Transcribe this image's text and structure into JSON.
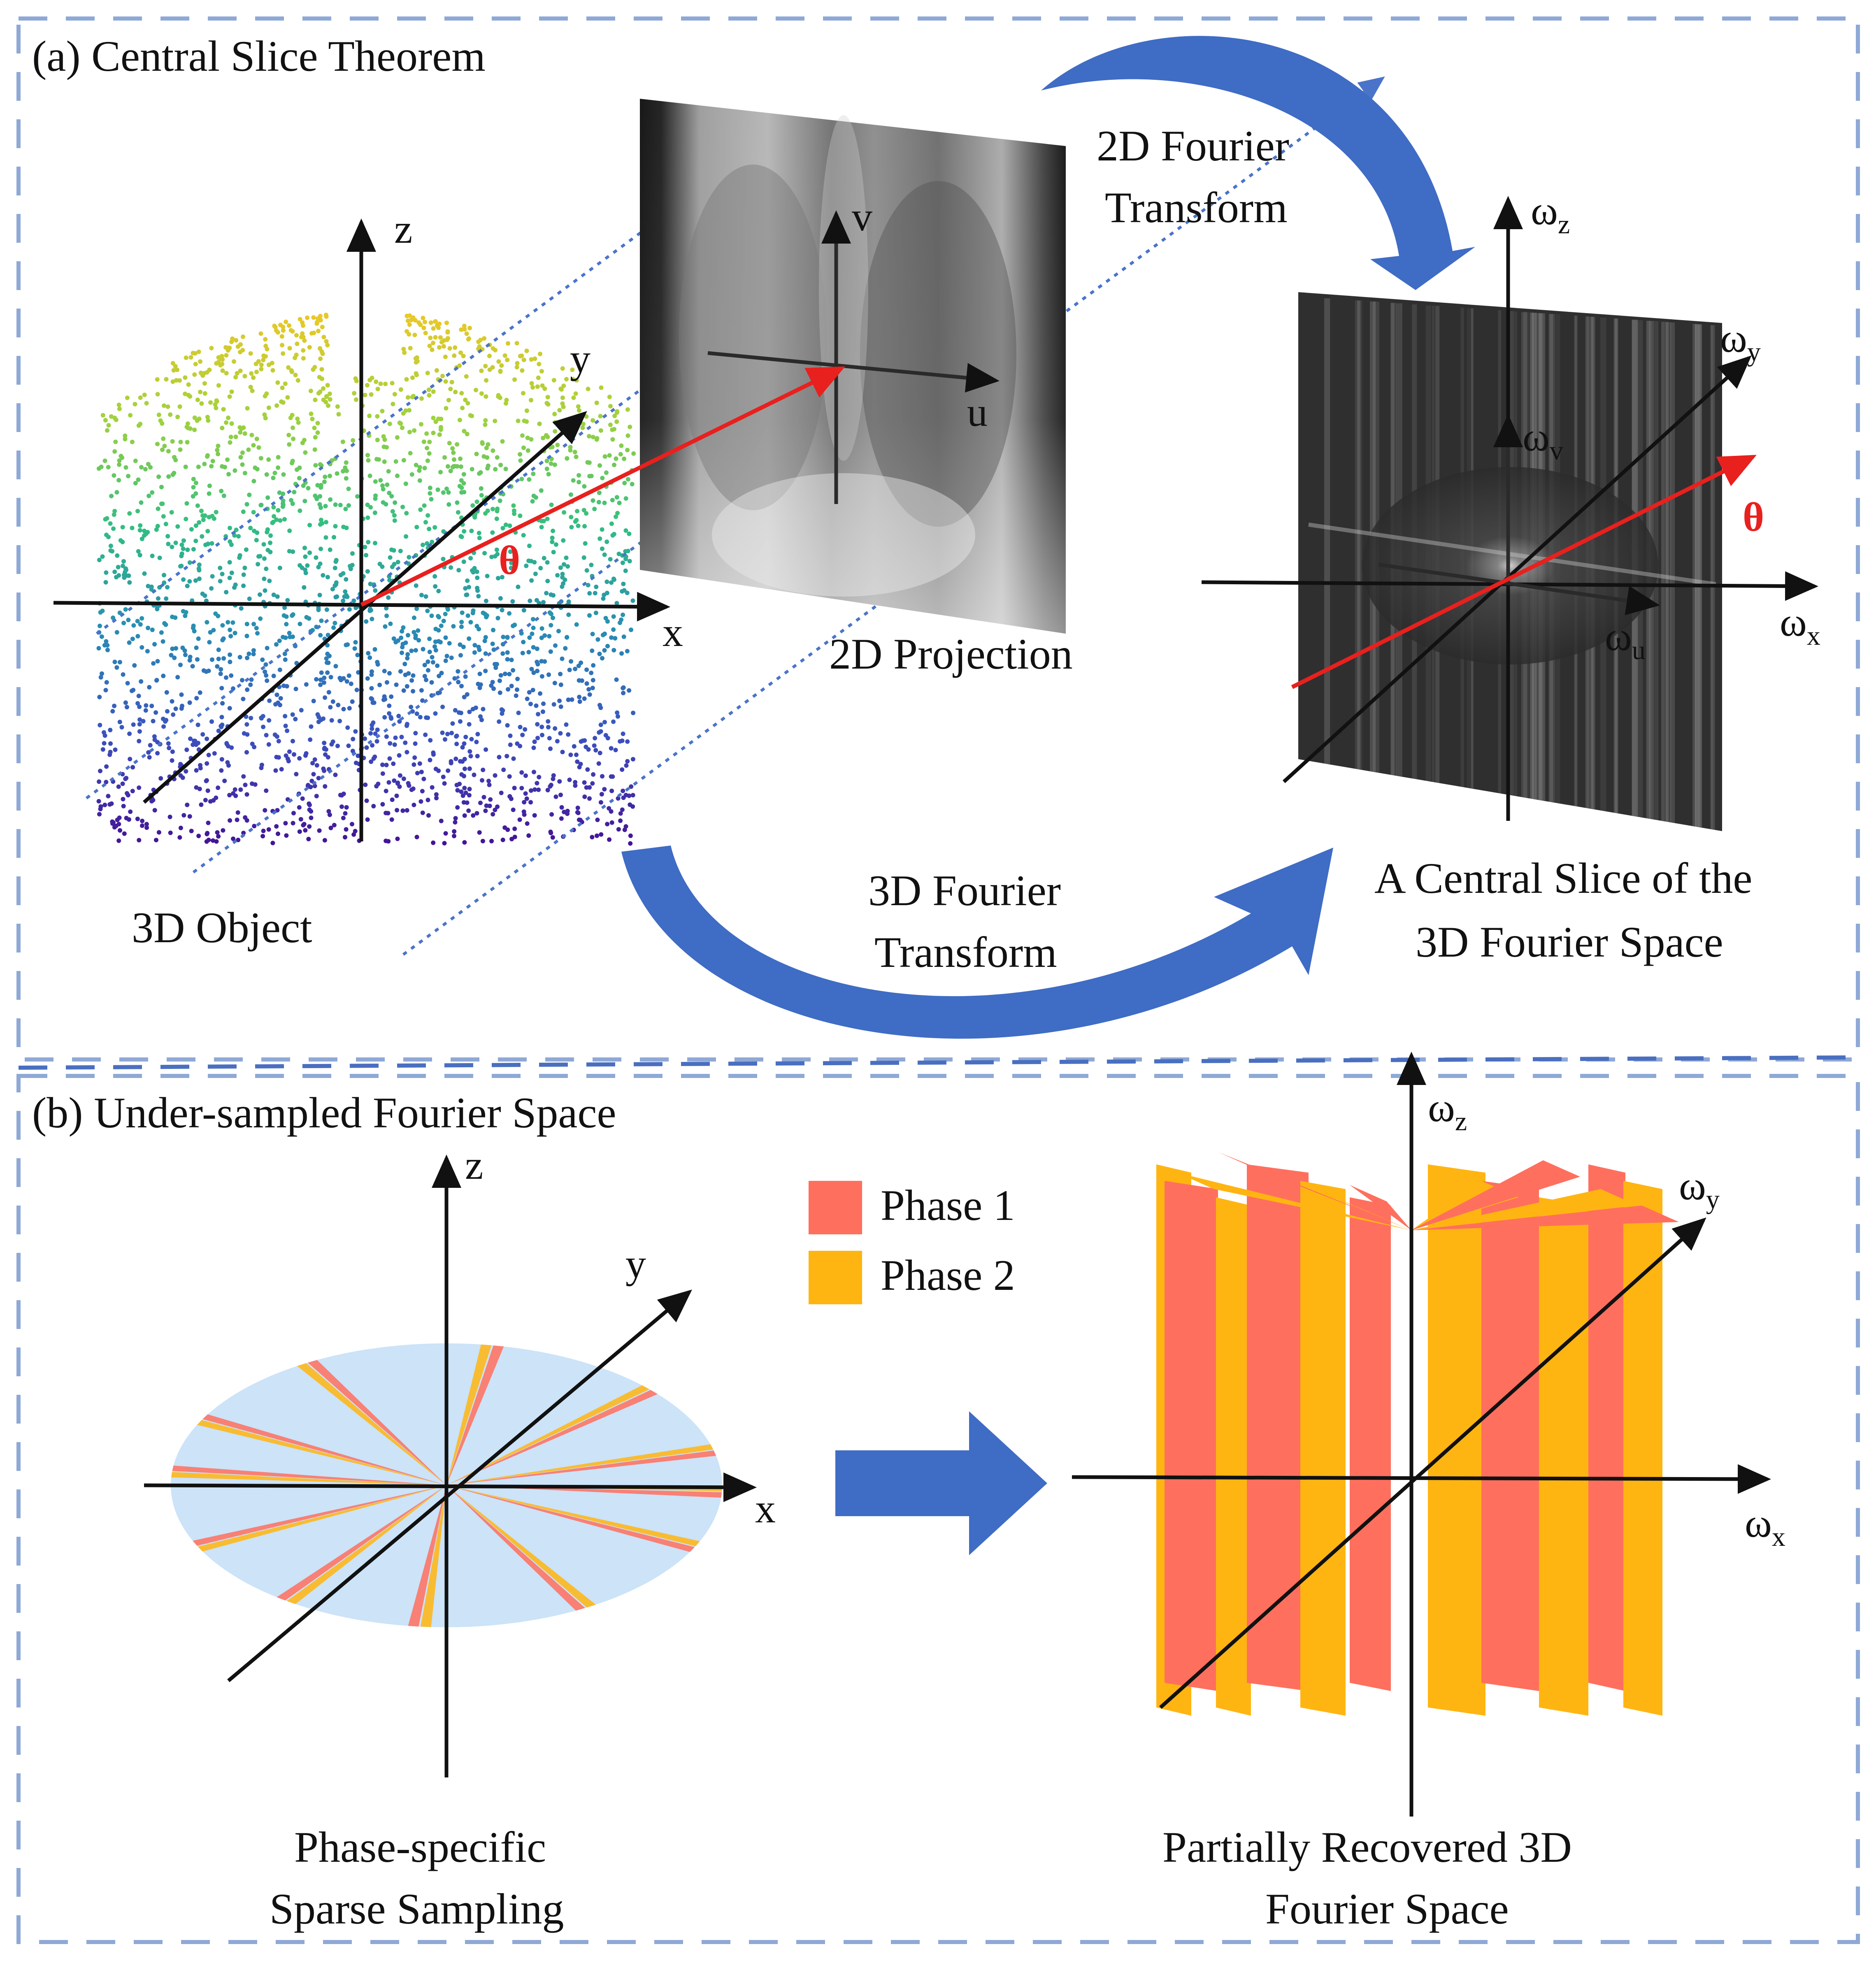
{
  "panel_a": {
    "title": "(a) Central Slice Theorem",
    "object_label": "3D Object",
    "projection_label": "2D Projection",
    "transform_2d": [
      "2D Fourier",
      "Transform"
    ],
    "transform_3d": [
      "3D Fourier",
      "Transform"
    ],
    "slice_label": [
      "A Central Slice of the",
      "3D Fourier Space"
    ],
    "angle": "θ",
    "axes": {
      "x": "x",
      "y": "y",
      "z": "z",
      "u": "u",
      "v": "v"
    },
    "freq_axes": {
      "omega": "ω",
      "x": "x",
      "y": "y",
      "z": "z",
      "u": "u",
      "v": "v"
    }
  },
  "panel_b": {
    "title": "(b) Under-sampled Fourier Space",
    "legend": [
      {
        "label": "Phase 1",
        "color": "#FF6F5E"
      },
      {
        "label": "Phase 2",
        "color": "#FFB511"
      }
    ],
    "sampling_label": [
      "Phase-specific",
      "Sparse Sampling"
    ],
    "recovered_label": [
      "Partially Recovered 3D",
      "Fourier Space"
    ],
    "axes": {
      "x": "x",
      "y": "y",
      "z": "z"
    },
    "freq_axes": {
      "omega": "ω",
      "x": "x",
      "y": "y",
      "z": "z"
    }
  },
  "colors": {
    "frame": "#8FA9D6",
    "arrow_blue": "#3F6CC4",
    "ray_blue": "#4A74C9",
    "angle_red": "#E8201E",
    "disk": "#CCE3F8",
    "phase1": "#FF6F5E",
    "phase2": "#FFB511"
  }
}
